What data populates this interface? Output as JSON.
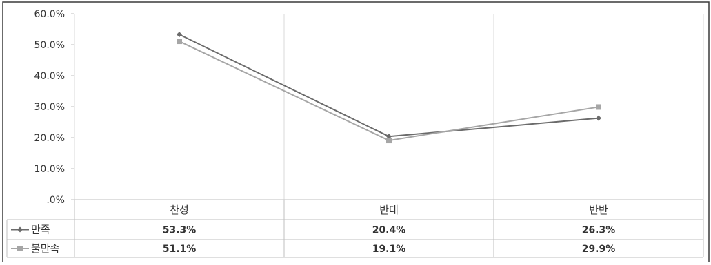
{
  "chart_data": {
    "type": "line",
    "categories": [
      "찬성",
      "반대",
      "반반"
    ],
    "series": [
      {
        "name": "만족",
        "values": [
          53.3,
          20.4,
          26.3
        ],
        "labels": [
          "53.3%",
          "20.4%",
          "26.3%"
        ],
        "color": "#6b6b6b",
        "marker": "diamond"
      },
      {
        "name": "불만족",
        "values": [
          51.1,
          19.1,
          29.9
        ],
        "labels": [
          "51.1%",
          "19.1%",
          "29.9%"
        ],
        "color": "#a6a6a6",
        "marker": "square"
      }
    ],
    "y_ticks": [
      ".0%",
      "10.0%",
      "20.0%",
      "30.0%",
      "40.0%",
      "50.0%",
      "60.0%"
    ],
    "ylim": [
      0,
      60
    ],
    "grid": "vertical",
    "legend": "data-table",
    "title": "",
    "xlabel": "",
    "ylabel": ""
  }
}
